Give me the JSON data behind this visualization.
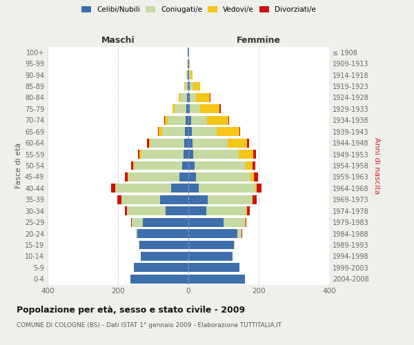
{
  "age_groups": [
    "0-4",
    "5-9",
    "10-14",
    "15-19",
    "20-24",
    "25-29",
    "30-34",
    "35-39",
    "40-44",
    "45-49",
    "50-54",
    "55-59",
    "60-64",
    "65-69",
    "70-74",
    "75-79",
    "80-84",
    "85-89",
    "90-94",
    "95-99",
    "100+"
  ],
  "birth_years": [
    "2004-2008",
    "1999-2003",
    "1994-1998",
    "1989-1993",
    "1984-1988",
    "1979-1983",
    "1974-1978",
    "1969-1973",
    "1964-1968",
    "1959-1963",
    "1954-1958",
    "1949-1953",
    "1944-1948",
    "1939-1943",
    "1934-1938",
    "1929-1933",
    "1924-1928",
    "1919-1923",
    "1914-1918",
    "1909-1913",
    "≤ 1908"
  ],
  "males": {
    "celibi": [
      165,
      155,
      135,
      140,
      145,
      130,
      65,
      80,
      50,
      25,
      18,
      14,
      12,
      10,
      8,
      5,
      3,
      2,
      2,
      1,
      1
    ],
    "coniugati": [
      0,
      0,
      0,
      1,
      5,
      30,
      110,
      110,
      155,
      145,
      135,
      120,
      95,
      65,
      50,
      35,
      20,
      8,
      3,
      0,
      0
    ],
    "vedovi": [
      0,
      0,
      0,
      0,
      0,
      0,
      0,
      0,
      2,
      3,
      4,
      5,
      5,
      10,
      8,
      5,
      4,
      1,
      0,
      0,
      0
    ],
    "divorziati": [
      0,
      0,
      0,
      0,
      0,
      2,
      5,
      12,
      12,
      8,
      5,
      5,
      5,
      2,
      2,
      0,
      0,
      0,
      0,
      0,
      0
    ]
  },
  "females": {
    "nubili": [
      160,
      145,
      125,
      130,
      140,
      100,
      50,
      55,
      30,
      22,
      18,
      14,
      12,
      10,
      8,
      4,
      3,
      3,
      2,
      1,
      1
    ],
    "coniugate": [
      0,
      0,
      0,
      2,
      10,
      60,
      115,
      125,
      160,
      155,
      145,
      130,
      100,
      70,
      45,
      30,
      18,
      10,
      4,
      0,
      0
    ],
    "vedove": [
      0,
      0,
      0,
      0,
      0,
      2,
      2,
      2,
      5,
      10,
      20,
      40,
      55,
      65,
      60,
      55,
      40,
      20,
      5,
      2,
      1
    ],
    "divorziate": [
      0,
      0,
      0,
      0,
      2,
      3,
      8,
      12,
      12,
      12,
      8,
      8,
      5,
      3,
      3,
      3,
      2,
      0,
      0,
      0,
      0
    ]
  },
  "colors": {
    "celibi_nubili": "#3d6fad",
    "coniugati": "#c5d9a0",
    "vedovi": "#f5c518",
    "divorziati": "#cc1111"
  },
  "title": "Popolazione per età, sesso e stato civile - 2009",
  "subtitle": "COMUNE DI COLOGNE (BS) - Dati ISTAT 1° gennaio 2009 - Elaborazione TUTTITALIA.IT",
  "ylabel_left": "Fasce di età",
  "ylabel_right": "Anni di nascita",
  "xlabel_left": "Maschi",
  "xlabel_right": "Femmine",
  "xlim": 400,
  "legend_labels": [
    "Celibi/Nubili",
    "Coniugati/e",
    "Vedovi/e",
    "Divorziati/e"
  ],
  "bg_color": "#f0f0eb",
  "plot_bg": "#ffffff"
}
